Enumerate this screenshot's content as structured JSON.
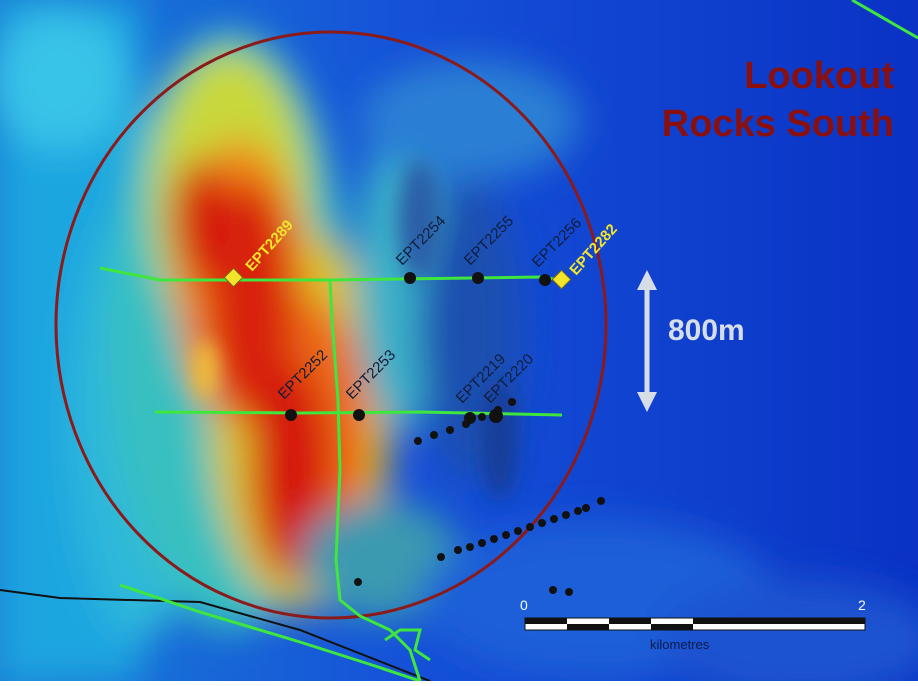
{
  "map": {
    "title_line1": "Lookout",
    "title_line2": "Rocks South",
    "distance_label": "800m",
    "drillholes": {
      "highlighted": [
        "EPT2289",
        "EPT2282"
      ],
      "upper_line": [
        "EPT2254",
        "EPT2255",
        "EPT2256"
      ],
      "lower_line": [
        "EPT2252",
        "EPT2253",
        "EPT2219",
        "EPT2220"
      ]
    },
    "scale_bar": {
      "start_label": "0",
      "end_label": "2",
      "unit_label": "kilometres"
    },
    "colors": {
      "title": "#8a1010",
      "circle": "#8b1a1a",
      "traverse_lines": "#3ee63e",
      "highlight_marker": "#f2e52a",
      "highlight_label": "#f2e52a",
      "arrow": "#d7dde6",
      "background_low": "#0a3cc8",
      "background_high": "#d8140a"
    }
  }
}
